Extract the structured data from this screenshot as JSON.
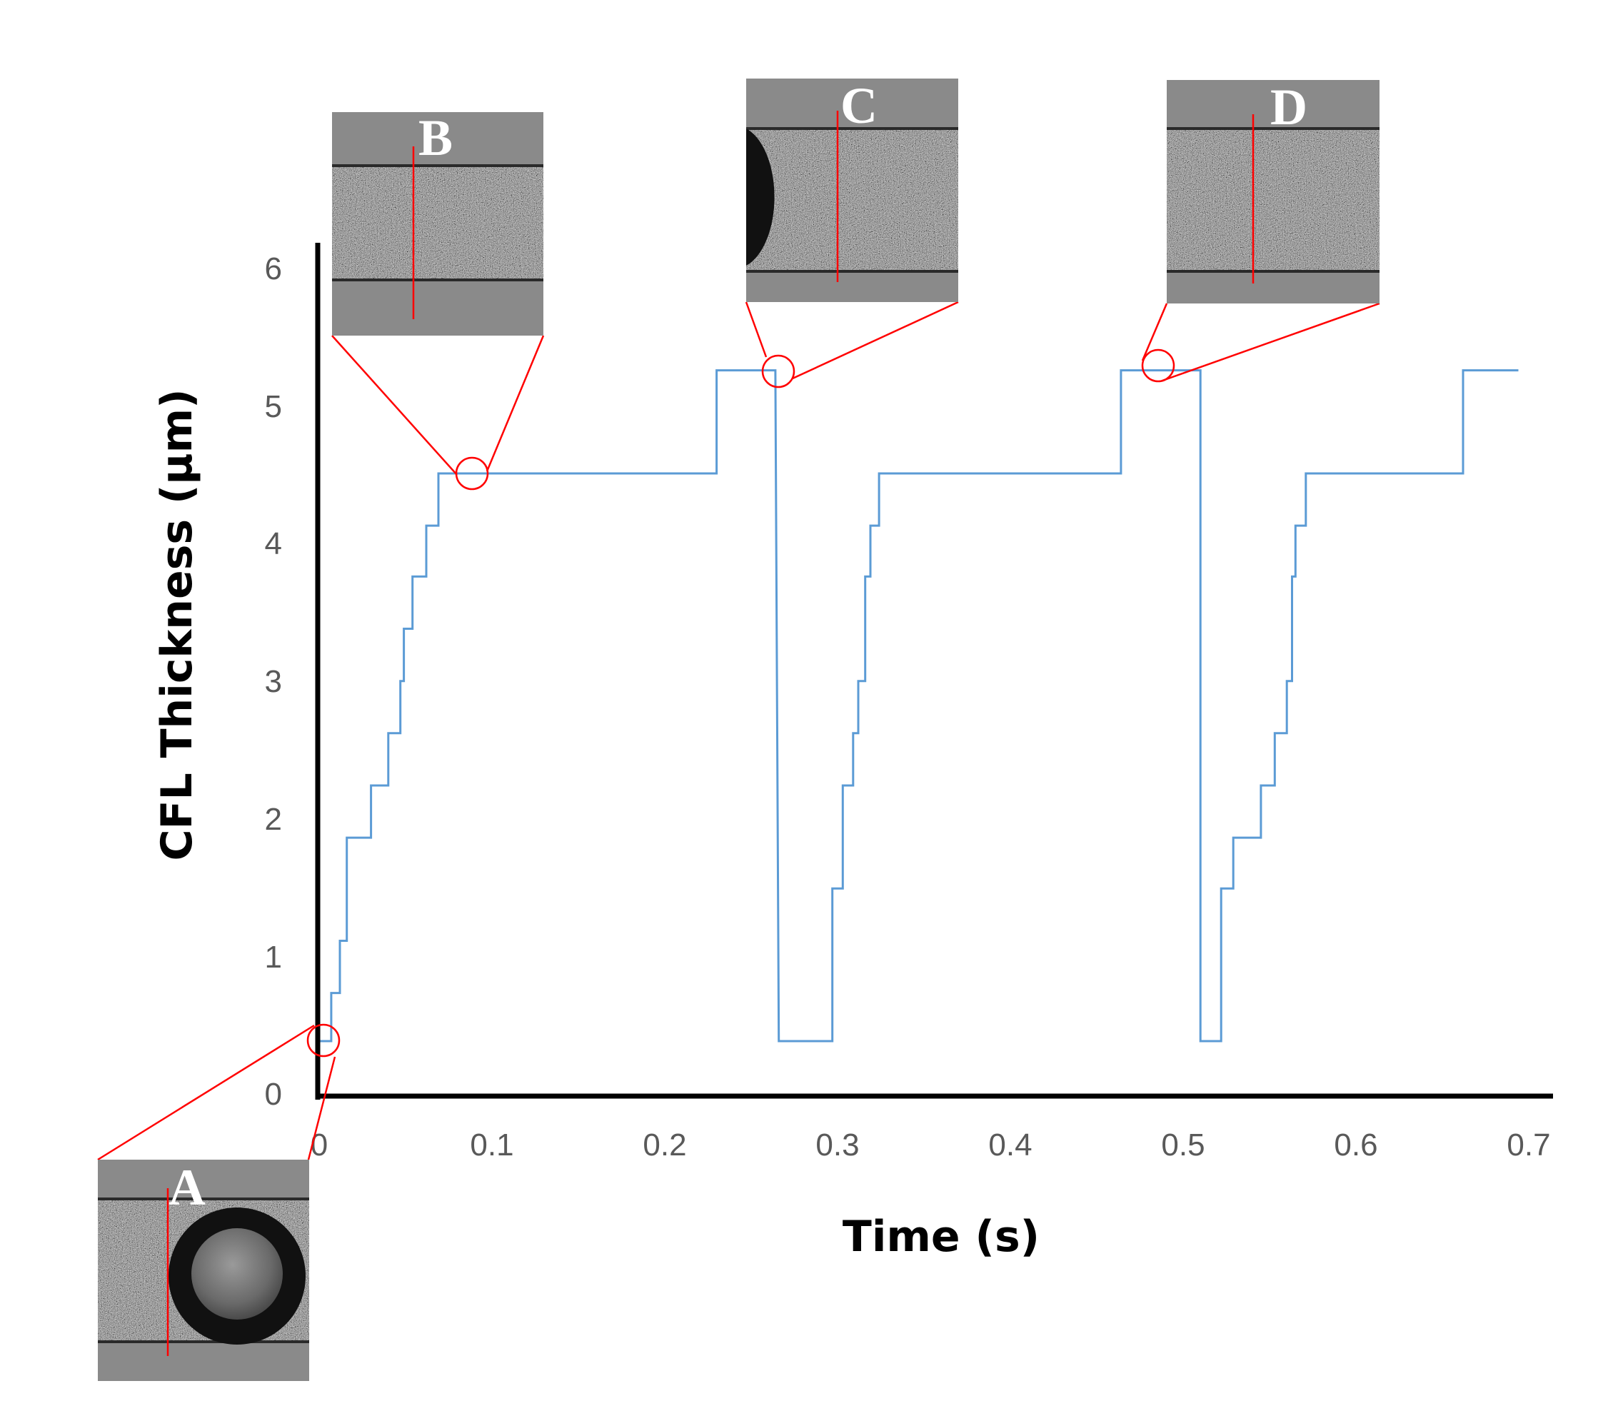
{
  "chart_data": {
    "type": "line",
    "title": "",
    "xlabel": "Time (s)",
    "ylabel": "CFL Thickness (μm)",
    "xlim": [
      0,
      0.7
    ],
    "ylim": [
      0,
      6
    ],
    "x_ticks": [
      "0",
      "0.1",
      "0.2",
      "0.3",
      "0.4",
      "0.5",
      "0.6",
      "0.7"
    ],
    "y_ticks": [
      "0",
      "1",
      "2",
      "3",
      "4",
      "5",
      "6"
    ],
    "grid": false,
    "legend": "none",
    "series": [
      {
        "name": "CFL thickness",
        "color": "#5b9bd5",
        "step": true,
        "points": [
          [
            0.0,
            0.4
          ],
          [
            0.007,
            0.4
          ],
          [
            0.007,
            0.75
          ],
          [
            0.012,
            0.75
          ],
          [
            0.012,
            1.13
          ],
          [
            0.016,
            1.13
          ],
          [
            0.016,
            1.88
          ],
          [
            0.03,
            1.88
          ],
          [
            0.03,
            2.26
          ],
          [
            0.04,
            2.26
          ],
          [
            0.04,
            2.64
          ],
          [
            0.047,
            2.64
          ],
          [
            0.047,
            3.02
          ],
          [
            0.049,
            3.02
          ],
          [
            0.049,
            3.4
          ],
          [
            0.054,
            3.4
          ],
          [
            0.054,
            3.78
          ],
          [
            0.062,
            3.78
          ],
          [
            0.062,
            4.15
          ],
          [
            0.069,
            4.15
          ],
          [
            0.069,
            4.53
          ],
          [
            0.23,
            4.53
          ],
          [
            0.23,
            5.28
          ],
          [
            0.264,
            5.28
          ],
          [
            0.266,
            0.4
          ],
          [
            0.297,
            0.4
          ],
          [
            0.297,
            1.51
          ],
          [
            0.303,
            1.51
          ],
          [
            0.303,
            2.26
          ],
          [
            0.309,
            2.26
          ],
          [
            0.309,
            2.64
          ],
          [
            0.312,
            2.64
          ],
          [
            0.312,
            3.02
          ],
          [
            0.316,
            3.02
          ],
          [
            0.316,
            3.78
          ],
          [
            0.319,
            3.78
          ],
          [
            0.319,
            4.15
          ],
          [
            0.324,
            4.15
          ],
          [
            0.324,
            4.53
          ],
          [
            0.464,
            4.53
          ],
          [
            0.464,
            5.28
          ],
          [
            0.51,
            5.28
          ],
          [
            0.51,
            0.4
          ],
          [
            0.522,
            0.4
          ],
          [
            0.522,
            1.51
          ],
          [
            0.529,
            1.51
          ],
          [
            0.529,
            1.88
          ],
          [
            0.545,
            1.88
          ],
          [
            0.545,
            2.26
          ],
          [
            0.553,
            2.26
          ],
          [
            0.553,
            2.64
          ],
          [
            0.56,
            2.64
          ],
          [
            0.56,
            3.02
          ],
          [
            0.563,
            3.02
          ],
          [
            0.563,
            3.78
          ],
          [
            0.565,
            3.78
          ],
          [
            0.565,
            4.15
          ],
          [
            0.571,
            4.15
          ],
          [
            0.571,
            4.53
          ],
          [
            0.662,
            4.53
          ],
          [
            0.662,
            5.28
          ],
          [
            0.694,
            5.28
          ]
        ]
      }
    ],
    "annotations": [
      {
        "label": "A",
        "x": 0.004,
        "y": 0.45
      },
      {
        "label": "B",
        "x": 0.09,
        "y": 4.53
      },
      {
        "label": "C",
        "x": 0.267,
        "y": 5.28
      },
      {
        "label": "D",
        "x": 0.486,
        "y": 5.28
      }
    ]
  },
  "colors": {
    "series": "#5b9bd5",
    "callout": "#ff0000",
    "axis": "#000000"
  }
}
